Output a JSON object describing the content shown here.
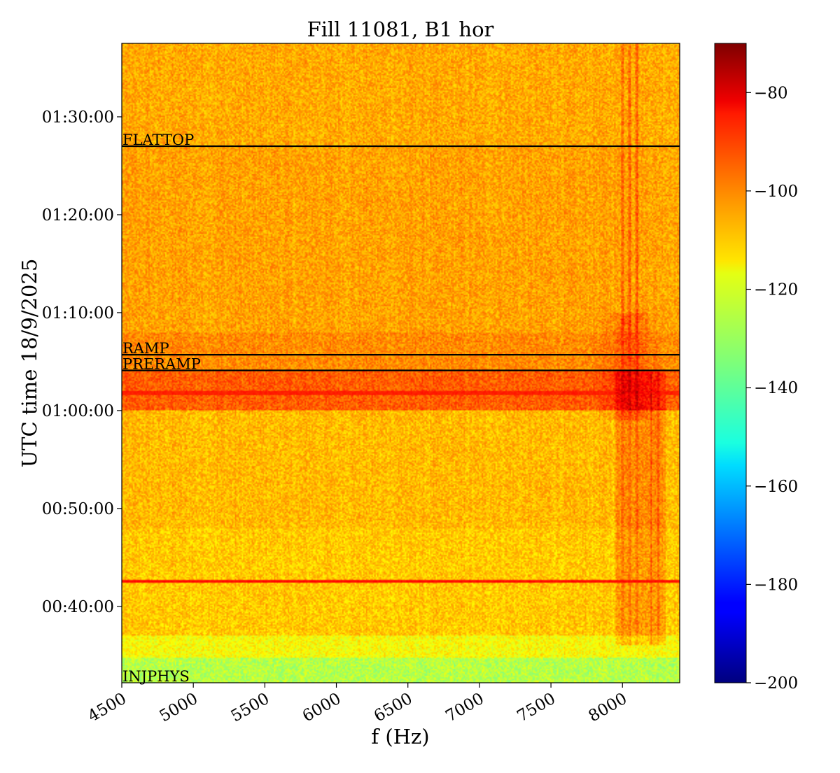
{
  "chart_data": {
    "type": "heatmap",
    "title": "Fill 11081, B1 hor",
    "xlabel": "f (Hz)",
    "ylabel": "UTC time 18/9/2025",
    "xlim": [
      4500,
      8400
    ],
    "x_ticks": [
      {
        "value": 4500,
        "label": "4500"
      },
      {
        "value": 5000,
        "label": "5000"
      },
      {
        "value": 5500,
        "label": "5500"
      },
      {
        "value": 6000,
        "label": "6000"
      },
      {
        "value": 6500,
        "label": "6500"
      },
      {
        "value": 7000,
        "label": "7000"
      },
      {
        "value": 7500,
        "label": "7500"
      },
      {
        "value": 8000,
        "label": "8000"
      }
    ],
    "ylim_minutes_after_midnight": [
      32.2,
      97.5
    ],
    "y_ticks": [
      {
        "value": 40,
        "label": "00:40:00"
      },
      {
        "value": 50,
        "label": "00:50:00"
      },
      {
        "value": 60,
        "label": "01:00:00"
      },
      {
        "value": 70,
        "label": "01:10:00"
      },
      {
        "value": 80,
        "label": "01:20:00"
      },
      {
        "value": 90,
        "label": "01:30:00"
      }
    ],
    "colorbar": {
      "colormap": "jet",
      "range": [
        -200,
        -70
      ],
      "ticks": [
        {
          "value": -80,
          "label": "−80"
        },
        {
          "value": -100,
          "label": "−100"
        },
        {
          "value": -120,
          "label": "−120"
        },
        {
          "value": -140,
          "label": "−140"
        },
        {
          "value": -160,
          "label": "−160"
        },
        {
          "value": -180,
          "label": "−180"
        },
        {
          "value": -200,
          "label": "−200"
        }
      ]
    },
    "annotations": [
      {
        "label": "FLATTOP",
        "time": 87.0
      },
      {
        "label": "RAMP",
        "time": 65.7
      },
      {
        "label": "PRERAMP",
        "time": 64.1
      },
      {
        "label": "INJPHYS",
        "time": 32.2
      }
    ],
    "horizontal_features": [
      {
        "time": 42.6,
        "level": -88
      },
      {
        "time": 61.8,
        "level": -90
      }
    ],
    "vertical_features_hz": [
      8000,
      8050,
      8100,
      8200,
      8250
    ]
  }
}
